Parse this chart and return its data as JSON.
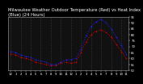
{
  "title": "Milwaukee Weather Outdoor Temperature (Red) vs Heat Index (Blue) (24 Hours)",
  "bg_color": "#000000",
  "plot_bg": "#111111",
  "grid_color": "#555555",
  "temp_color": "#dd0000",
  "heat_color": "#2222ff",
  "hours": [
    0,
    1,
    2,
    3,
    4,
    5,
    6,
    7,
    8,
    9,
    10,
    11,
    12,
    13,
    14,
    15,
    16,
    17,
    18,
    19,
    20,
    21,
    22,
    23
  ],
  "temp": [
    64,
    63,
    61,
    60,
    59,
    57,
    56,
    55,
    54,
    54,
    56,
    57,
    56,
    57,
    65,
    74,
    80,
    83,
    84,
    82,
    78,
    72,
    66,
    60
  ],
  "heat": [
    66,
    65,
    63,
    62,
    61,
    59,
    58,
    57,
    55,
    55,
    57,
    59,
    59,
    60,
    68,
    79,
    87,
    91,
    93,
    90,
    85,
    78,
    71,
    64
  ],
  "ylim": [
    50,
    95
  ],
  "yticks": [
    50,
    55,
    60,
    65,
    70,
    75,
    80,
    85,
    90,
    95
  ],
  "ytick_labels": [
    "50",
    "55",
    "60",
    "65",
    "70",
    "75",
    "80",
    "85",
    "90",
    "95"
  ],
  "xtick_labels": [
    "12",
    "1",
    "2",
    "3",
    "4",
    "5",
    "6",
    "7",
    "8",
    "9",
    "10",
    "11",
    "12",
    "1",
    "2",
    "3",
    "4",
    "5",
    "6",
    "7",
    "8",
    "9",
    "10",
    "11"
  ],
  "title_fontsize": 3.8,
  "tick_fontsize": 2.8,
  "linewidth": 0.7,
  "markersize": 1.0
}
